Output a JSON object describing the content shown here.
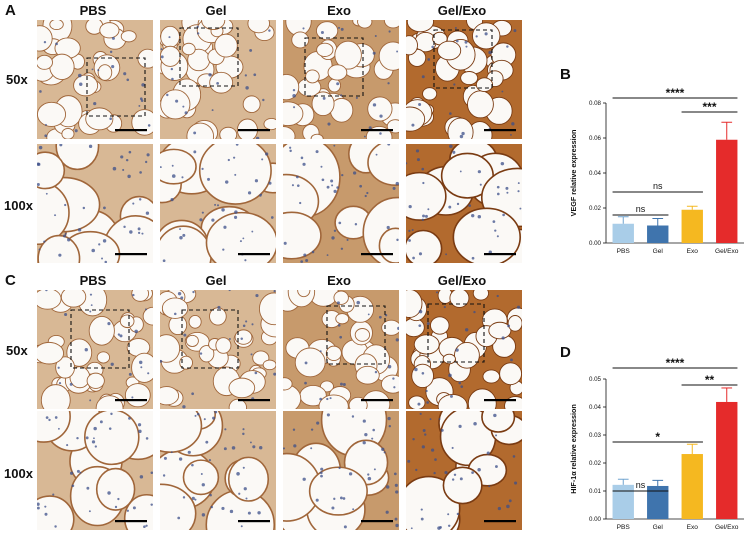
{
  "figure": {
    "panels": {
      "A": {
        "letter": "A",
        "columns": [
          "PBS",
          "Gel",
          "Exo",
          "Gel/Exo"
        ],
        "rows": [
          "50x",
          "100x"
        ]
      },
      "B": {
        "letter": "B"
      },
      "C": {
        "letter": "C",
        "columns": [
          "PBS",
          "Gel",
          "Exo",
          "Gel/Exo"
        ],
        "rows": [
          "50x",
          "100x"
        ]
      },
      "D": {
        "letter": "D"
      }
    },
    "colors": {
      "PBS": "#a9cde8",
      "Gel": "#3f74ad",
      "Exo": "#f5b820",
      "Gel/Exo": "#e52b2b"
    }
  },
  "chart_data": [
    {
      "type": "bar",
      "panel": "B",
      "categories": [
        "PBS",
        "Gel",
        "Exo",
        "Gel/Exo"
      ],
      "values": [
        0.011,
        0.01,
        0.019,
        0.059
      ],
      "errors": [
        0.004,
        0.004,
        0.002,
        0.01
      ],
      "ylabel": "VEGF relative expression",
      "ylim": [
        0,
        0.08
      ],
      "yticks": [
        "0.00",
        "0.02",
        "0.04",
        "0.06",
        "0.08"
      ],
      "grid": false,
      "significance": [
        {
          "from": "PBS",
          "to": "Gel/Exo",
          "label": "****"
        },
        {
          "from": "Exo",
          "to": "Gel/Exo",
          "label": "***"
        },
        {
          "from": "PBS",
          "to": "Exo",
          "label": "ns"
        },
        {
          "from": "PBS",
          "to": "Gel",
          "label": "ns"
        }
      ]
    },
    {
      "type": "bar",
      "panel": "D",
      "categories": [
        "PBS",
        "Gel",
        "Exo",
        "Gel/Exo"
      ],
      "values": [
        0.0122,
        0.0118,
        0.0232,
        0.0418
      ],
      "errors": [
        0.002,
        0.002,
        0.0035,
        0.005
      ],
      "ylabel": "HIF-1α relative expression",
      "ylim": [
        0,
        0.05
      ],
      "yticks": [
        "0.00",
        "0.01",
        "0.02",
        "0.03",
        "0.04",
        "0.05"
      ],
      "grid": false,
      "significance": [
        {
          "from": "PBS",
          "to": "Gel/Exo",
          "label": "****"
        },
        {
          "from": "Exo",
          "to": "Gel/Exo",
          "label": "**"
        },
        {
          "from": "PBS",
          "to": "Exo",
          "label": "*"
        },
        {
          "from": "PBS",
          "to": "Gel",
          "label": "ns"
        }
      ]
    }
  ]
}
